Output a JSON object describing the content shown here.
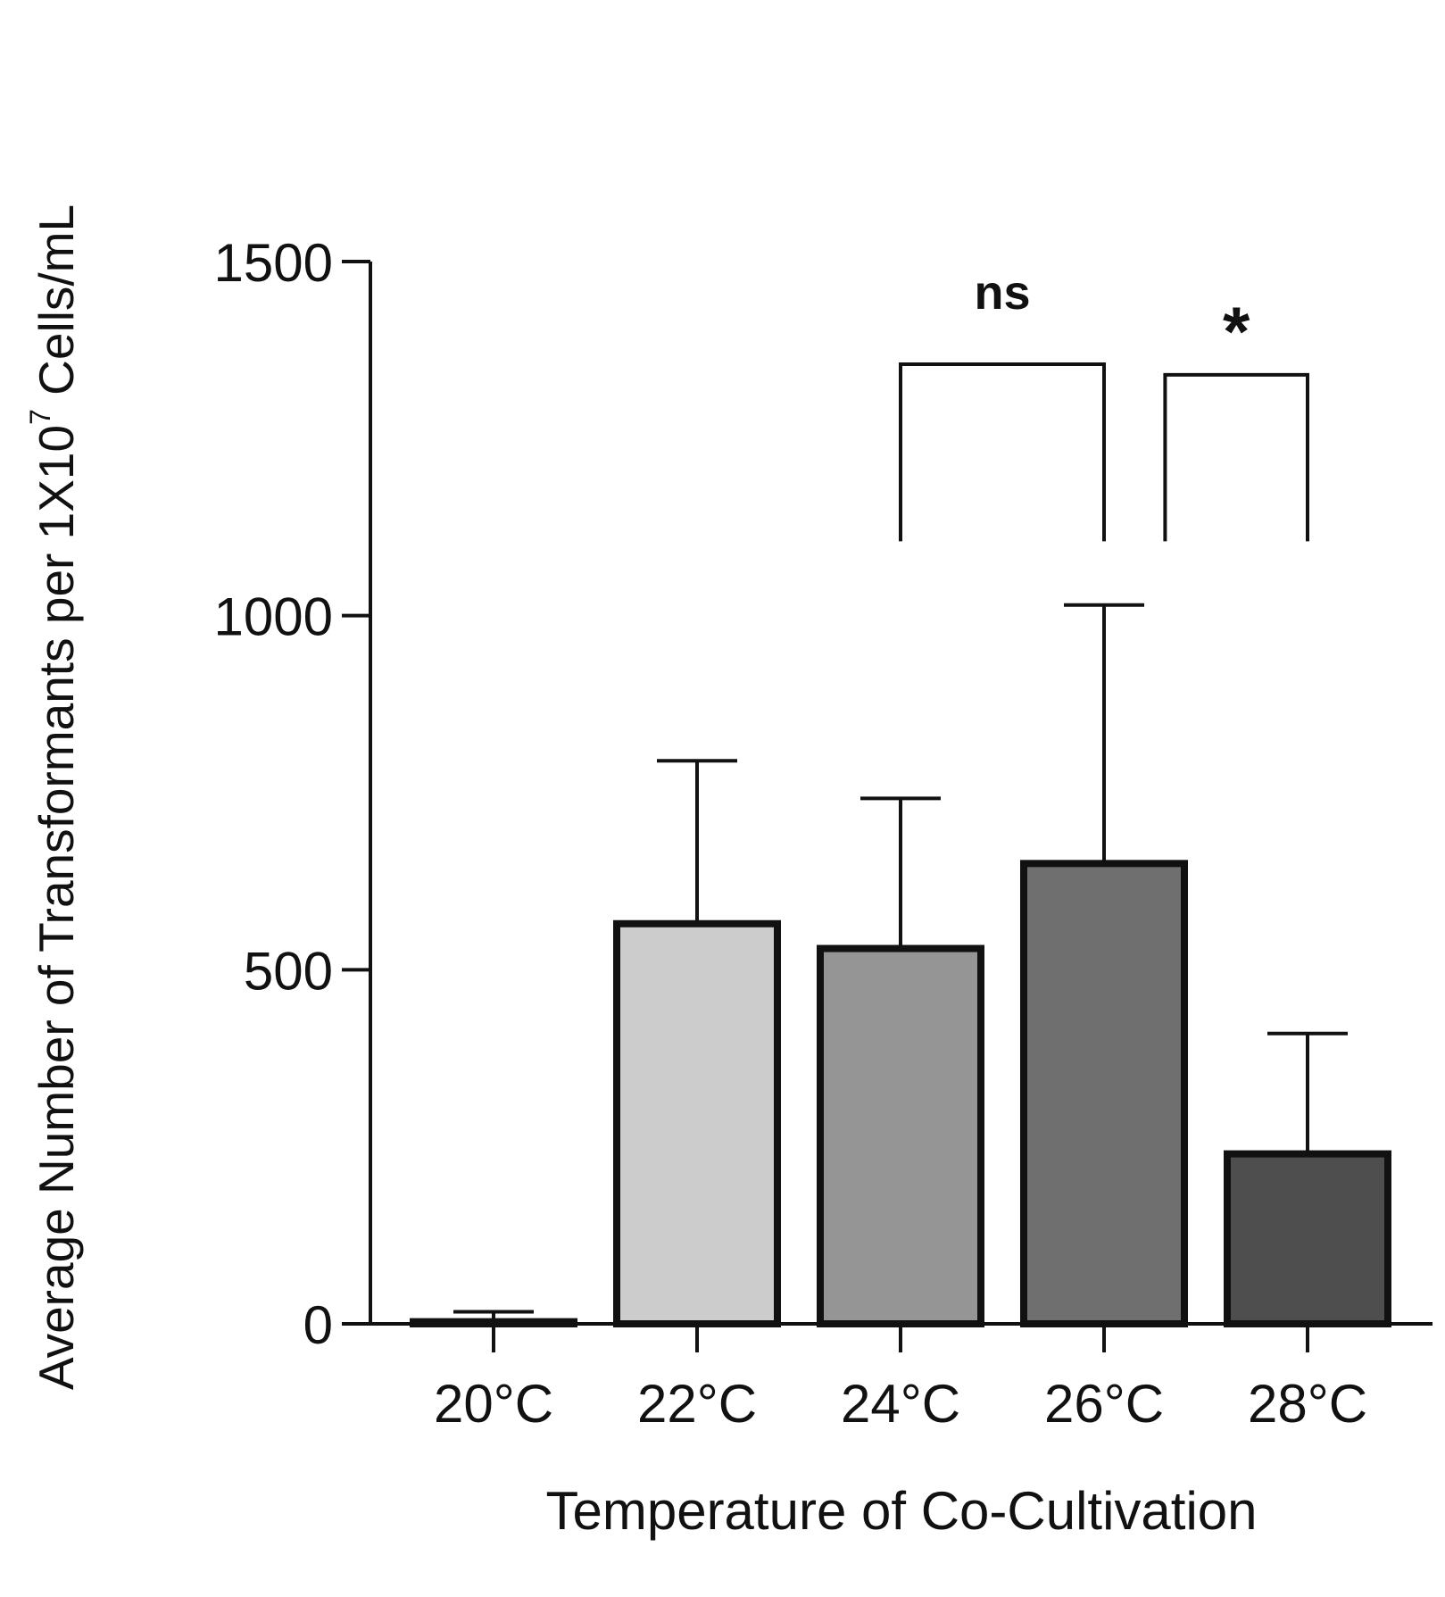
{
  "chart_data": {
    "type": "bar",
    "title": "",
    "xlabel": "Temperature of Co-Cultivation",
    "ylabel_prefix": "Average Number of Transformants per 1X10",
    "ylabel_exponent": "7",
    "ylabel_suffix": " Cells/mL",
    "ylim": [
      0,
      1500
    ],
    "yticks": [
      0,
      500,
      1000,
      1500
    ],
    "ytick_labels": [
      "0",
      "500",
      "1000",
      "1500"
    ],
    "categories": [
      "20°C",
      "22°C",
      "24°C",
      "26°C",
      "28°C"
    ],
    "values": [
      3,
      565,
      530,
      650,
      240
    ],
    "error_upper": [
      17,
      795,
      742,
      1015,
      410
    ],
    "colors": [
      "#f2f2f2",
      "#cccccc",
      "#959595",
      "#6f6f6f",
      "#4e4e4e"
    ],
    "grid": false,
    "legend": "none",
    "annotations": [
      {
        "label": "ns",
        "from": 2,
        "to": 3,
        "bracket_top": 1355,
        "bracket_bottom": 1105
      },
      {
        "label": "*",
        "from": 3.3,
        "to": 4,
        "bracket_top": 1340,
        "bracket_bottom": 1105
      }
    ]
  }
}
